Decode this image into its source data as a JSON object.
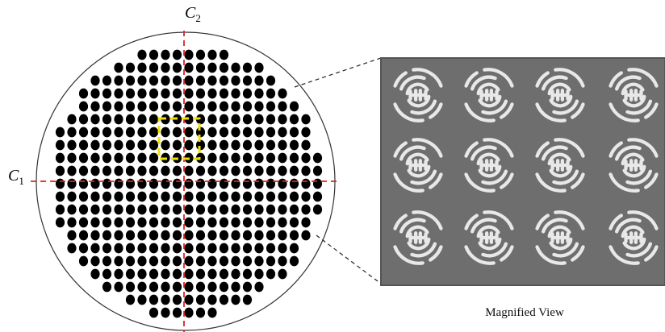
{
  "labels": {
    "c2": {
      "text": "C",
      "subscript": "2"
    },
    "c1": {
      "text": "C",
      "subscript": "1"
    },
    "magnified_caption": "Magnified View"
  }
}
